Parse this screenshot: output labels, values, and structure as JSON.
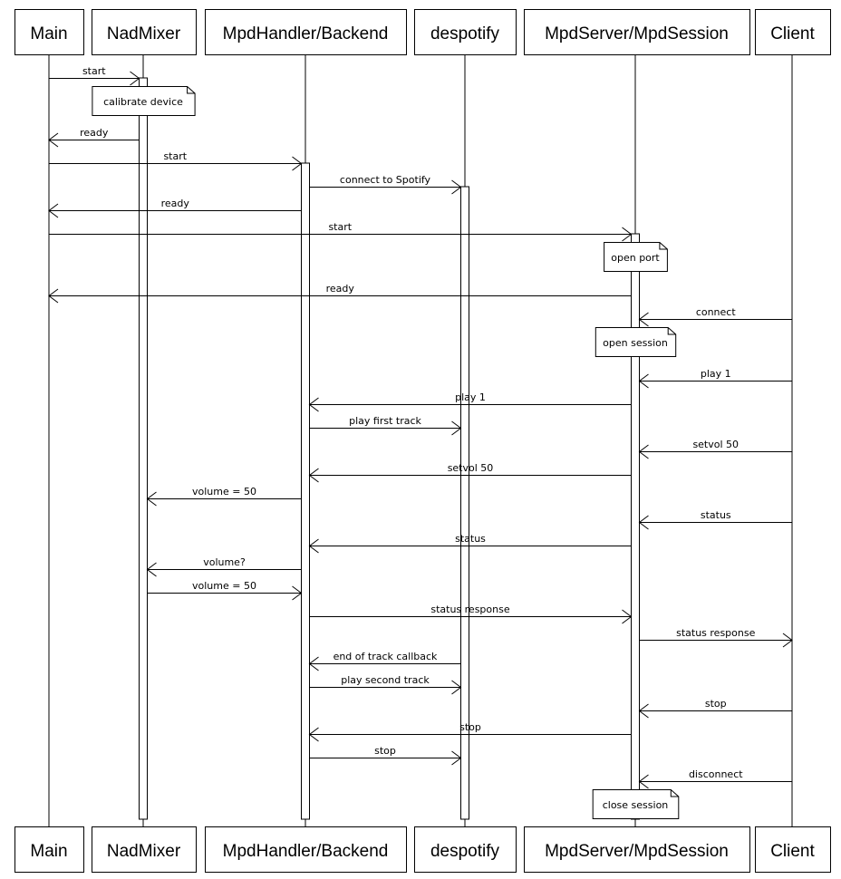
{
  "participants": [
    {
      "id": "main",
      "label": "Main"
    },
    {
      "id": "nadmixer",
      "label": "NadMixer"
    },
    {
      "id": "backend",
      "label": "MpdHandler/Backend"
    },
    {
      "id": "despotify",
      "label": "despotify"
    },
    {
      "id": "mpdserver",
      "label": "MpdServer/MpdSession"
    },
    {
      "id": "client",
      "label": "Client"
    }
  ],
  "activations": [
    "nadmixer",
    "backend",
    "despotify",
    "mpdserver"
  ],
  "events": [
    {
      "type": "msg",
      "from": "main",
      "to": "nadmixer",
      "label": "start"
    },
    {
      "type": "note",
      "on": "nadmixer",
      "label": "calibrate device"
    },
    {
      "type": "msg",
      "from": "nadmixer",
      "to": "main",
      "label": "ready"
    },
    {
      "type": "msg",
      "from": "main",
      "to": "backend",
      "label": "start"
    },
    {
      "type": "msg",
      "from": "backend",
      "to": "despotify",
      "label": "connect to Spotify"
    },
    {
      "type": "msg",
      "from": "backend",
      "to": "main",
      "label": "ready"
    },
    {
      "type": "msg",
      "from": "main",
      "to": "mpdserver",
      "label": "start"
    },
    {
      "type": "note",
      "on": "mpdserver",
      "label": "open port"
    },
    {
      "type": "msg",
      "from": "mpdserver",
      "to": "main",
      "label": "ready"
    },
    {
      "type": "msg",
      "from": "client",
      "to": "mpdserver",
      "label": "connect"
    },
    {
      "type": "note",
      "on": "mpdserver",
      "label": "open session"
    },
    {
      "type": "msg",
      "from": "client",
      "to": "mpdserver",
      "label": "play 1"
    },
    {
      "type": "msg",
      "from": "mpdserver",
      "to": "backend",
      "label": "play 1"
    },
    {
      "type": "msg",
      "from": "backend",
      "to": "despotify",
      "label": "play first track"
    },
    {
      "type": "msg",
      "from": "client",
      "to": "mpdserver",
      "label": "setvol 50"
    },
    {
      "type": "msg",
      "from": "mpdserver",
      "to": "backend",
      "label": "setvol 50"
    },
    {
      "type": "msg",
      "from": "backend",
      "to": "nadmixer",
      "label": "volume = 50"
    },
    {
      "type": "msg",
      "from": "client",
      "to": "mpdserver",
      "label": "status"
    },
    {
      "type": "msg",
      "from": "mpdserver",
      "to": "backend",
      "label": "status"
    },
    {
      "type": "msg",
      "from": "backend",
      "to": "nadmixer",
      "label": "volume?"
    },
    {
      "type": "msg",
      "from": "nadmixer",
      "to": "backend",
      "label": "volume = 50"
    },
    {
      "type": "msg",
      "from": "backend",
      "to": "mpdserver",
      "label": "status response"
    },
    {
      "type": "msg",
      "from": "mpdserver",
      "to": "client",
      "label": "status response"
    },
    {
      "type": "msg",
      "from": "despotify",
      "to": "backend",
      "label": "end of track callback"
    },
    {
      "type": "msg",
      "from": "backend",
      "to": "despotify",
      "label": "play second track"
    },
    {
      "type": "msg",
      "from": "client",
      "to": "mpdserver",
      "label": "stop"
    },
    {
      "type": "msg",
      "from": "mpdserver",
      "to": "backend",
      "label": "stop"
    },
    {
      "type": "msg",
      "from": "backend",
      "to": "despotify",
      "label": "stop"
    },
    {
      "type": "msg",
      "from": "client",
      "to": "mpdserver",
      "label": "disconnect"
    },
    {
      "type": "note",
      "on": "mpdserver",
      "label": "close session"
    }
  ]
}
